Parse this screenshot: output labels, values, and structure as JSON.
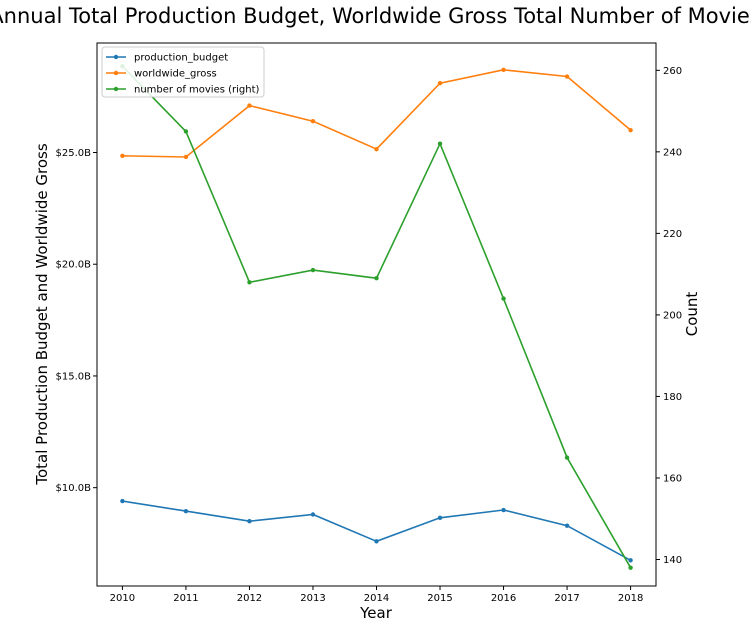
{
  "chart_data": {
    "type": "line",
    "title": "Annual Total Production Budget, Worldwide Gross Total Number of Movies",
    "xlabel": "Year",
    "ylabel_left": "Total Production Budget and Worldwide Gross",
    "ylabel_right": "Count",
    "x": [
      2010,
      2011,
      2012,
      2013,
      2014,
      2015,
      2016,
      2017,
      2018
    ],
    "x_tick_labels": [
      "2010",
      "2011",
      "2012",
      "2013",
      "2014",
      "2015",
      "2016",
      "2017",
      "2018"
    ],
    "y_left_ticks": [
      10,
      15,
      20,
      25
    ],
    "y_left_tick_labels": [
      "$10.0B",
      "$15.0B",
      "$20.0B",
      "$25.0B"
    ],
    "y_left_unit": "billion USD",
    "ylim_left": [
      5.6,
      29.9
    ],
    "y_right_ticks": [
      140,
      160,
      180,
      200,
      220,
      240,
      260
    ],
    "y_right_tick_labels": [
      "140",
      "160",
      "180",
      "200",
      "220",
      "240",
      "260"
    ],
    "ylim_right": [
      133.5,
      266.7
    ],
    "legend_position": "top-left",
    "grid": false,
    "series": [
      {
        "name": "production_budget",
        "axis": "left",
        "color": "#1f77b4",
        "values": [
          9.4,
          8.95,
          8.5,
          8.8,
          7.6,
          8.65,
          9.0,
          8.3,
          6.75
        ]
      },
      {
        "name": "worldwide_gross",
        "axis": "left",
        "color": "#ff7f0e",
        "values": [
          24.85,
          24.8,
          27.1,
          26.4,
          25.15,
          28.1,
          28.7,
          28.4,
          26.0
        ]
      },
      {
        "name": "number of movies (right)",
        "axis": "right",
        "color": "#2ca02c",
        "values": [
          261,
          245,
          208,
          211,
          209,
          242,
          204,
          165,
          138
        ]
      }
    ]
  }
}
